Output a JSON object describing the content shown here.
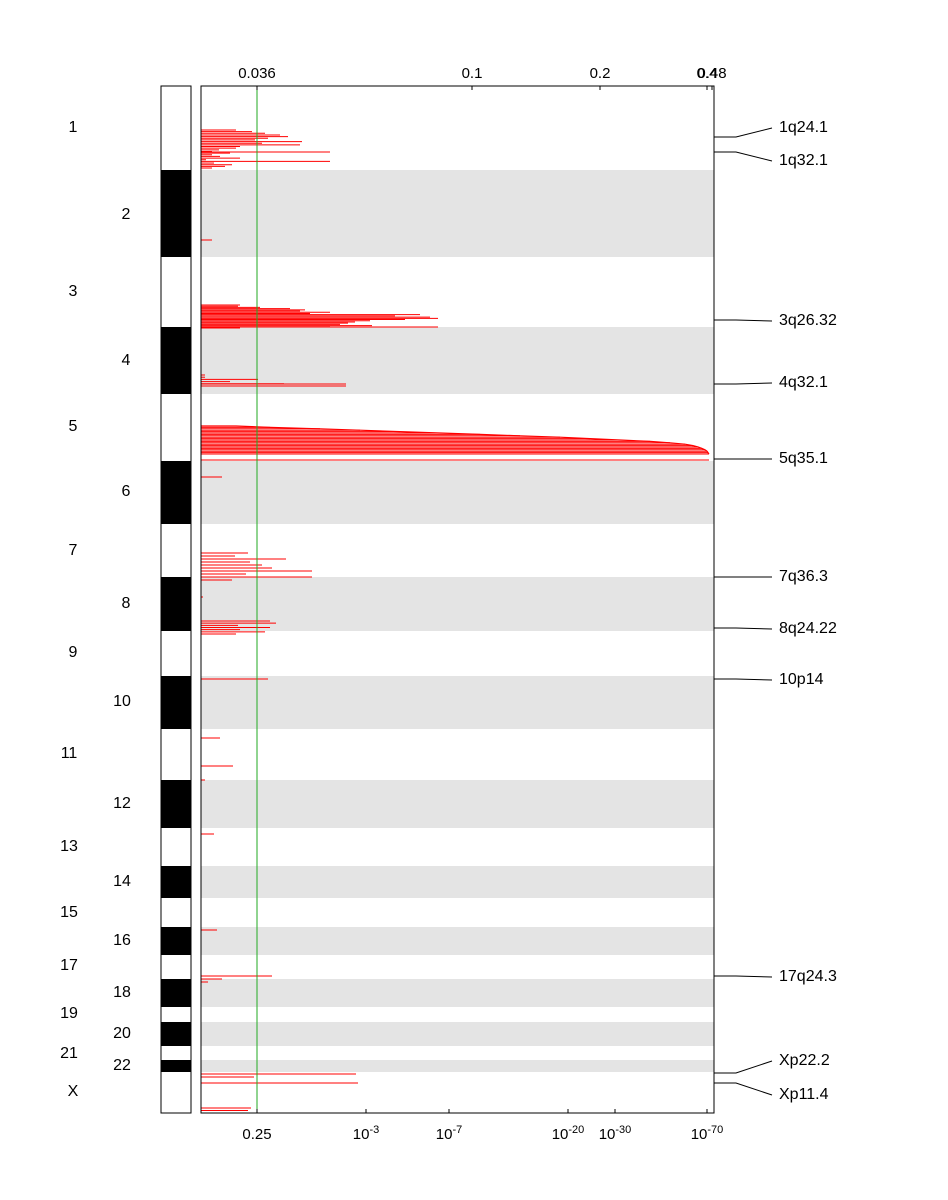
{
  "chart_data": {
    "type": "genome-significance-plot",
    "top_axis": {
      "ticks": [
        {
          "label": "0.036",
          "value": 0.036
        },
        {
          "label": "0.1",
          "value": 0.1
        },
        {
          "label": "0.2",
          "value": 0.2
        },
        {
          "label": "0.4",
          "value": 0.4
        },
        {
          "label": "0.48",
          "value": 0.48
        }
      ]
    },
    "bottom_axis": {
      "ticks": [
        {
          "label": "0.25",
          "base": "",
          "exp": ""
        },
        {
          "label": "10-3",
          "base": "10",
          "exp": "-3"
        },
        {
          "label": "10-7",
          "base": "10",
          "exp": "-7"
        },
        {
          "label": "10-20",
          "base": "10",
          "exp": "-20"
        },
        {
          "label": "10-30",
          "base": "10",
          "exp": "-30"
        },
        {
          "label": "10-70",
          "base": "10",
          "exp": "-70"
        }
      ]
    },
    "threshold": {
      "value": 0.036,
      "q_value": 0.25,
      "color": "#22aa22"
    },
    "series_color": "#ff0000",
    "band_color": "#e4e4e4",
    "chromosomes": [
      {
        "label": "1",
        "ideogram": "white",
        "shaded": false
      },
      {
        "label": "2",
        "ideogram": "black",
        "shaded": true
      },
      {
        "label": "3",
        "ideogram": "white",
        "shaded": false
      },
      {
        "label": "4",
        "ideogram": "black",
        "shaded": true
      },
      {
        "label": "5",
        "ideogram": "white",
        "shaded": false
      },
      {
        "label": "6",
        "ideogram": "black",
        "shaded": true
      },
      {
        "label": "7",
        "ideogram": "white",
        "shaded": false
      },
      {
        "label": "8",
        "ideogram": "black",
        "shaded": true
      },
      {
        "label": "9",
        "ideogram": "white",
        "shaded": false
      },
      {
        "label": "10",
        "ideogram": "black",
        "shaded": true
      },
      {
        "label": "11",
        "ideogram": "white",
        "shaded": false
      },
      {
        "label": "12",
        "ideogram": "black",
        "shaded": true
      },
      {
        "label": "13",
        "ideogram": "white",
        "shaded": false
      },
      {
        "label": "14",
        "ideogram": "black",
        "shaded": true
      },
      {
        "label": "15",
        "ideogram": "white",
        "shaded": false
      },
      {
        "label": "16",
        "ideogram": "black",
        "shaded": true
      },
      {
        "label": "17",
        "ideogram": "white",
        "shaded": false
      },
      {
        "label": "18",
        "ideogram": "black",
        "shaded": true
      },
      {
        "label": "19",
        "ideogram": "white",
        "shaded": false
      },
      {
        "label": "20",
        "ideogram": "black",
        "shaded": true
      },
      {
        "label": "21",
        "ideogram": "white",
        "shaded": false
      },
      {
        "label": "22",
        "ideogram": "black",
        "shaded": true
      },
      {
        "label": "X",
        "ideogram": "white",
        "shaded": false
      }
    ],
    "peak_labels": [
      "1q24.1",
      "1q32.1",
      "3q26.32",
      "4q32.1",
      "5q35.1",
      "7q36.3",
      "8q24.22",
      "10p14",
      "17q24.3",
      "Xp22.2",
      "Xp11.4"
    ]
  }
}
